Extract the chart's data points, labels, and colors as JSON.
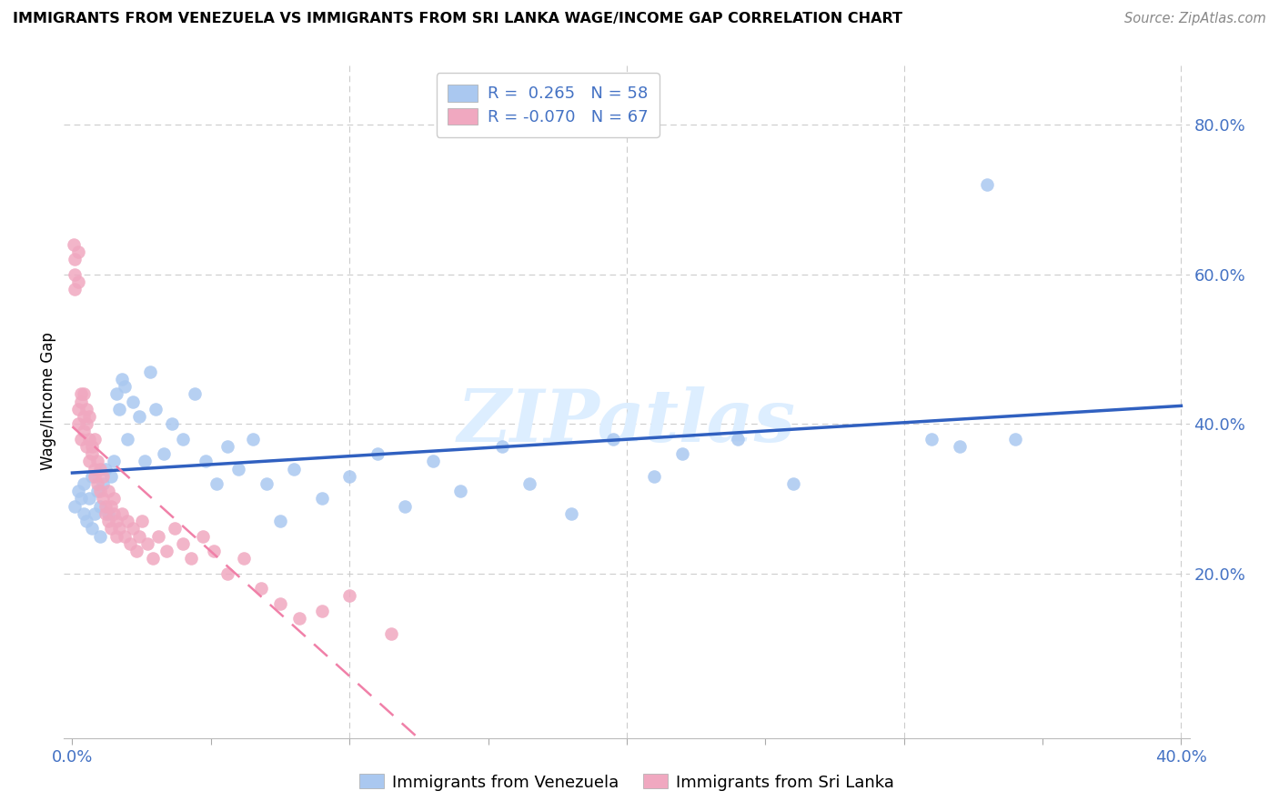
{
  "title": "IMMIGRANTS FROM VENEZUELA VS IMMIGRANTS FROM SRI LANKA WAGE/INCOME GAP CORRELATION CHART",
  "source": "Source: ZipAtlas.com",
  "ylabel": "Wage/Income Gap",
  "xlim": [
    -0.003,
    0.403
  ],
  "ylim": [
    -0.02,
    0.88
  ],
  "yticks_right": [
    0.2,
    0.4,
    0.6,
    0.8
  ],
  "ytick_right_labels": [
    "20.0%",
    "40.0%",
    "60.0%",
    "80.0%"
  ],
  "xtick_positions": [
    0.0,
    0.05,
    0.1,
    0.15,
    0.2,
    0.25,
    0.3,
    0.35,
    0.4
  ],
  "xtick_labels": [
    "0.0%",
    "",
    "",
    "",
    "",
    "",
    "",
    "",
    "40.0%"
  ],
  "color_venezuela": "#aac8f0",
  "color_srilanka": "#f0a8c0",
  "color_venezuela_line": "#3060c0",
  "color_srilanka_line": "#f080a8",
  "watermark_color": "#ddeeff",
  "grid_color": "#cccccc",
  "tick_color": "#4472c4",
  "venezuela_x": [
    0.001,
    0.002,
    0.003,
    0.004,
    0.004,
    0.005,
    0.006,
    0.007,
    0.007,
    0.008,
    0.009,
    0.01,
    0.01,
    0.011,
    0.012,
    0.013,
    0.014,
    0.015,
    0.016,
    0.017,
    0.018,
    0.019,
    0.02,
    0.022,
    0.024,
    0.026,
    0.028,
    0.03,
    0.033,
    0.036,
    0.04,
    0.044,
    0.048,
    0.052,
    0.056,
    0.06,
    0.065,
    0.07,
    0.075,
    0.08,
    0.09,
    0.1,
    0.11,
    0.12,
    0.13,
    0.14,
    0.155,
    0.165,
    0.18,
    0.195,
    0.21,
    0.22,
    0.24,
    0.26,
    0.31,
    0.32,
    0.33,
    0.34
  ],
  "venezuela_y": [
    0.29,
    0.31,
    0.3,
    0.28,
    0.32,
    0.27,
    0.3,
    0.33,
    0.26,
    0.28,
    0.31,
    0.29,
    0.25,
    0.32,
    0.34,
    0.28,
    0.33,
    0.35,
    0.44,
    0.42,
    0.46,
    0.45,
    0.38,
    0.43,
    0.41,
    0.35,
    0.47,
    0.42,
    0.36,
    0.4,
    0.38,
    0.44,
    0.35,
    0.32,
    0.37,
    0.34,
    0.38,
    0.32,
    0.27,
    0.34,
    0.3,
    0.33,
    0.36,
    0.29,
    0.35,
    0.31,
    0.37,
    0.32,
    0.28,
    0.38,
    0.33,
    0.36,
    0.38,
    0.32,
    0.38,
    0.37,
    0.72,
    0.38
  ],
  "srilanka_x": [
    0.0005,
    0.001,
    0.001,
    0.001,
    0.002,
    0.002,
    0.002,
    0.002,
    0.003,
    0.003,
    0.003,
    0.004,
    0.004,
    0.004,
    0.005,
    0.005,
    0.005,
    0.006,
    0.006,
    0.006,
    0.007,
    0.007,
    0.008,
    0.008,
    0.008,
    0.009,
    0.009,
    0.01,
    0.01,
    0.011,
    0.011,
    0.012,
    0.012,
    0.013,
    0.013,
    0.014,
    0.014,
    0.015,
    0.015,
    0.016,
    0.016,
    0.017,
    0.018,
    0.019,
    0.02,
    0.021,
    0.022,
    0.023,
    0.024,
    0.025,
    0.027,
    0.029,
    0.031,
    0.034,
    0.037,
    0.04,
    0.043,
    0.047,
    0.051,
    0.056,
    0.062,
    0.068,
    0.075,
    0.082,
    0.09,
    0.1,
    0.115
  ],
  "srilanka_y": [
    0.64,
    0.62,
    0.6,
    0.58,
    0.63,
    0.59,
    0.42,
    0.4,
    0.44,
    0.43,
    0.38,
    0.41,
    0.39,
    0.44,
    0.42,
    0.4,
    0.37,
    0.38,
    0.35,
    0.41,
    0.37,
    0.36,
    0.34,
    0.33,
    0.38,
    0.35,
    0.32,
    0.31,
    0.34,
    0.3,
    0.33,
    0.29,
    0.28,
    0.31,
    0.27,
    0.29,
    0.26,
    0.28,
    0.3,
    0.27,
    0.25,
    0.26,
    0.28,
    0.25,
    0.27,
    0.24,
    0.26,
    0.23,
    0.25,
    0.27,
    0.24,
    0.22,
    0.25,
    0.23,
    0.26,
    0.24,
    0.22,
    0.25,
    0.23,
    0.2,
    0.22,
    0.18,
    0.16,
    0.14,
    0.15,
    0.17,
    0.12
  ]
}
